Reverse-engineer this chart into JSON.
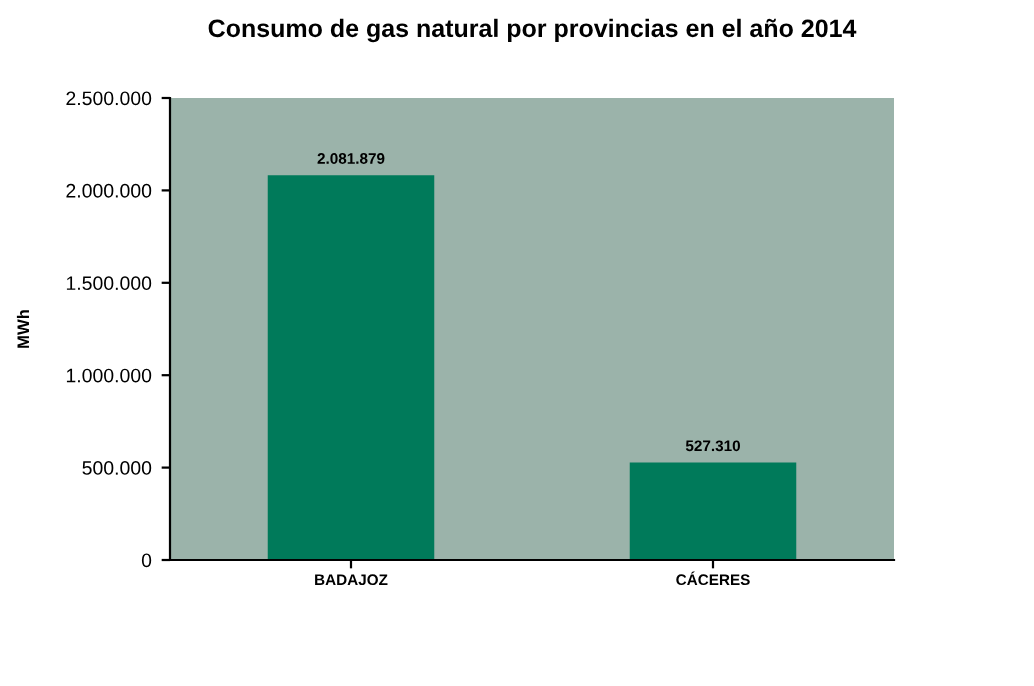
{
  "chart_data": {
    "type": "bar",
    "title": "Consumo de gas natural por provincias en el año 2014",
    "ylabel": "MWh",
    "categories": [
      "BADAJOZ",
      "CÁCERES"
    ],
    "values": [
      2081879,
      527310
    ],
    "value_labels": [
      "2.081.879",
      "527.310"
    ],
    "color": "#007a5a",
    "ylim": [
      0,
      2500000
    ],
    "yticks": [
      {
        "value": 0,
        "label": "0"
      },
      {
        "value": 500000,
        "label": "500.000"
      },
      {
        "value": 1000000,
        "label": "1.000.000"
      },
      {
        "value": 1500000,
        "label": "1.500.000"
      },
      {
        "value": 2000000,
        "label": "2.000.000"
      },
      {
        "value": 2500000,
        "label": "2.500.000"
      }
    ],
    "grid": false,
    "legend": false
  }
}
